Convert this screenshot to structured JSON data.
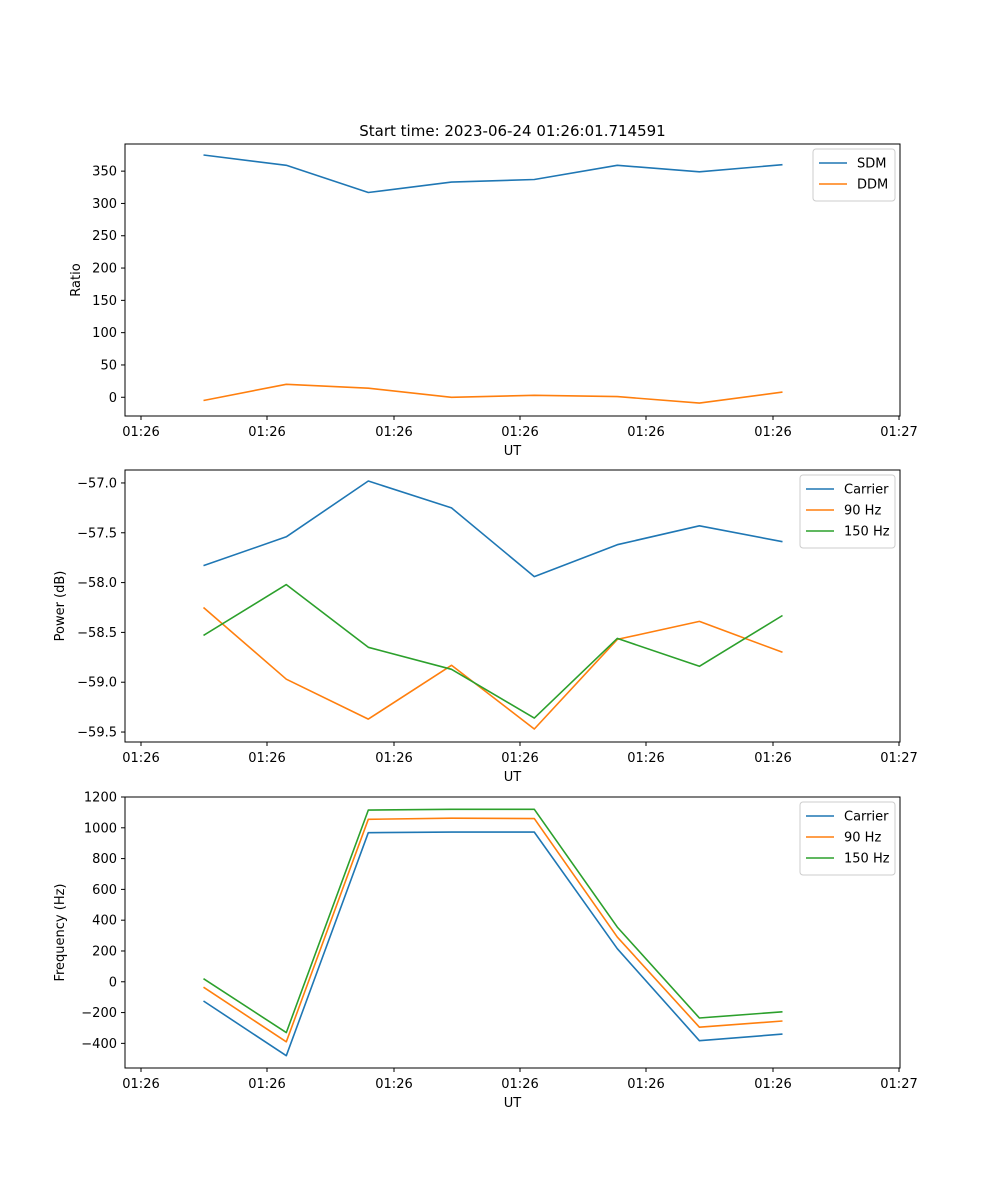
{
  "figure_title": "Start time: 2023-06-24 01:26:01.714591",
  "colors": {
    "blue": "#1f77b4",
    "orange": "#ff7f0e",
    "green": "#2ca02c"
  },
  "chart_data": [
    {
      "type": "line",
      "xlabel": "UT",
      "ylabel": "Ratio",
      "x_ticks": [
        "01:26",
        "01:26",
        "01:26",
        "01:26",
        "01:26",
        "01:26",
        "01:27"
      ],
      "ylim": [
        -29,
        392
      ],
      "y_ticks": [
        0,
        50,
        100,
        150,
        200,
        250,
        300,
        350
      ],
      "legend_position": "top-right",
      "grid": false,
      "series": [
        {
          "name": "SDM",
          "color": "#1f77b4",
          "values": [
            375,
            359,
            317,
            333,
            337,
            359,
            349,
            360
          ]
        },
        {
          "name": "DDM",
          "color": "#ff7f0e",
          "values": [
            -5,
            20,
            14,
            0,
            3,
            1,
            -9,
            8
          ]
        }
      ]
    },
    {
      "type": "line",
      "xlabel": "UT",
      "ylabel": "Power (dB)",
      "x_ticks": [
        "01:26",
        "01:26",
        "01:26",
        "01:26",
        "01:26",
        "01:26",
        "01:27"
      ],
      "ylim": [
        -59.6,
        -56.87
      ],
      "y_ticks": [
        -59.5,
        -59.0,
        -58.5,
        -58.0,
        -57.5,
        -57.0
      ],
      "y_tick_labels": [
        "−59.5",
        "−59.0",
        "−58.5",
        "−58.0",
        "−57.5",
        "−57.0"
      ],
      "legend_position": "top-right",
      "grid": false,
      "series": [
        {
          "name": "Carrier",
          "color": "#1f77b4",
          "values": [
            -57.83,
            -57.54,
            -56.98,
            -57.25,
            -57.94,
            -57.62,
            -57.43,
            -57.59
          ]
        },
        {
          "name": "90 Hz",
          "color": "#ff7f0e",
          "values": [
            -58.25,
            -58.97,
            -59.37,
            -58.83,
            -59.47,
            -58.57,
            -58.39,
            -58.7
          ]
        },
        {
          "name": "150 Hz",
          "color": "#2ca02c",
          "values": [
            -58.53,
            -58.02,
            -58.65,
            -58.87,
            -59.36,
            -58.56,
            -58.84,
            -58.33
          ]
        }
      ]
    },
    {
      "type": "line",
      "xlabel": "UT",
      "ylabel": "Frequency (Hz)",
      "x_ticks": [
        "01:26",
        "01:26",
        "01:26",
        "01:26",
        "01:26",
        "01:26",
        "01:27"
      ],
      "ylim": [
        -560,
        1200
      ],
      "y_ticks": [
        -400,
        -200,
        0,
        200,
        400,
        600,
        800,
        1000,
        1200
      ],
      "y_tick_labels": [
        "−400",
        "−200",
        "0",
        "200",
        "400",
        "600",
        "800",
        "1000",
        "1200"
      ],
      "legend_position": "top-right",
      "grid": false,
      "series": [
        {
          "name": "Carrier",
          "color": "#1f77b4",
          "values": [
            -125,
            -480,
            968,
            972,
            972,
            215,
            -383,
            -340
          ]
        },
        {
          "name": "90 Hz",
          "color": "#ff7f0e",
          "values": [
            -35,
            -390,
            1055,
            1062,
            1060,
            290,
            -295,
            -255
          ]
        },
        {
          "name": "150 Hz",
          "color": "#2ca02c",
          "values": [
            20,
            -330,
            1115,
            1120,
            1120,
            355,
            -235,
            -195
          ]
        }
      ]
    }
  ]
}
